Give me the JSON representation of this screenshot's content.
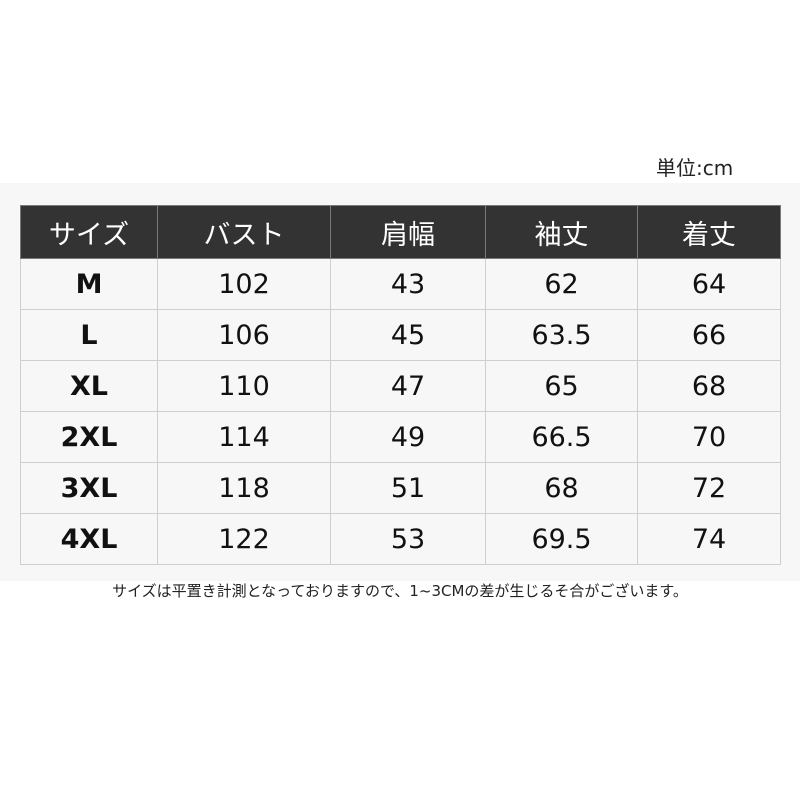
{
  "unit_label": "単位:cm",
  "table": {
    "headers": [
      "サイズ",
      "バスト",
      "肩幅",
      "袖丈",
      "着丈"
    ],
    "rows": [
      [
        "M",
        "102",
        "43",
        "62",
        "64"
      ],
      [
        "L",
        "106",
        "45",
        "63.5",
        "66"
      ],
      [
        "XL",
        "110",
        "47",
        "65",
        "68"
      ],
      [
        "2XL",
        "114",
        "49",
        "66.5",
        "70"
      ],
      [
        "3XL",
        "118",
        "51",
        "68",
        "72"
      ],
      [
        "4XL",
        "122",
        "53",
        "69.5",
        "74"
      ]
    ]
  },
  "note": "サイズは平置き計測となっておりますので、1~3CMの差が生じるそ合がございます。",
  "colors": {
    "header_bg": "#333333",
    "body_bg": "#f7f7f7"
  }
}
